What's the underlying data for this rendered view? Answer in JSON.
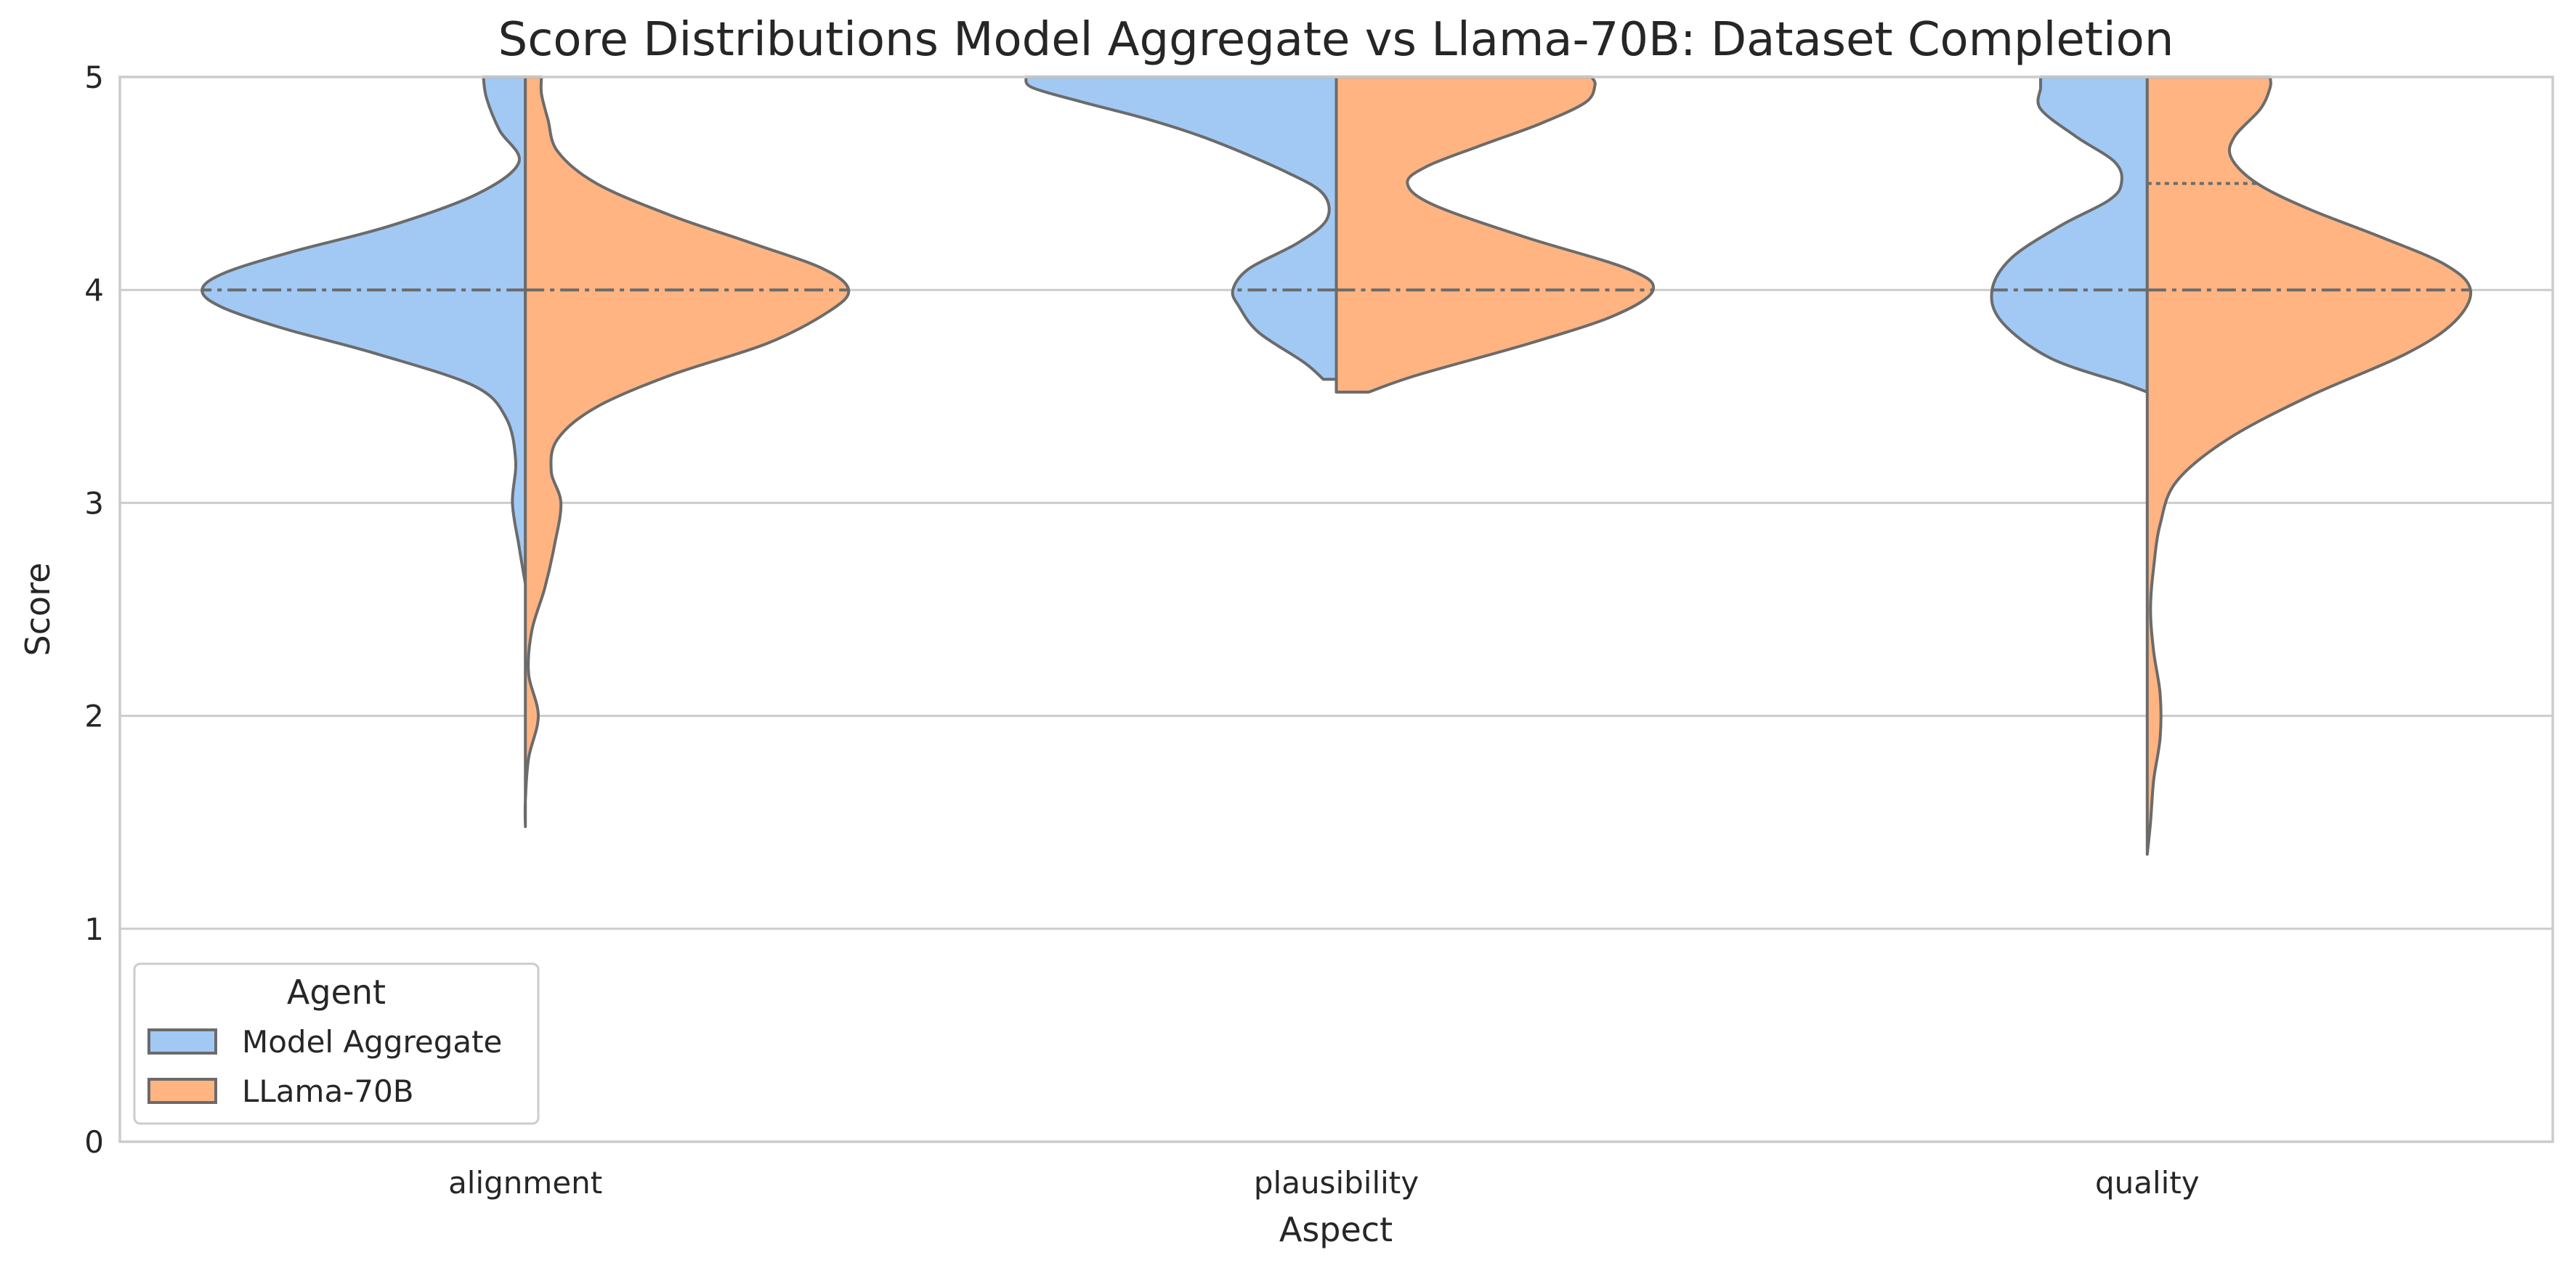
{
  "chart_data": {
    "type": "violin",
    "title": "Score Distributions Model Aggregate vs Llama-70B: Dataset Completion",
    "xlabel": "Aspect",
    "ylabel": "Score",
    "ylim": [
      0,
      5
    ],
    "yticks": [
      "0",
      "1",
      "2",
      "3",
      "4",
      "5"
    ],
    "categories": [
      "alignment",
      "plausibility",
      "quality"
    ],
    "grid": "horizontal",
    "legend": {
      "title": "Agent",
      "placement": "lower-left",
      "entries": [
        "Model Aggregate",
        "LLama-70B"
      ]
    },
    "colors": {
      "Model Aggregate": "#a1c9f4",
      "LLama-70B": "#ffb482",
      "outline": "#6b6b6b",
      "grid": "#cccccc",
      "frame": "#cccccc"
    },
    "series": [
      {
        "name": "Model Aggregate",
        "side": "left",
        "violins": [
          {
            "category": "alignment",
            "min": 2.62,
            "max": 5.0,
            "median": 4.0,
            "quartile_lines": [
              4.0
            ],
            "profile": [
              [
                2.62,
                0.0
              ],
              [
                2.8,
                0.02
              ],
              [
                3.0,
                0.04
              ],
              [
                3.2,
                0.03
              ],
              [
                3.4,
                0.06
              ],
              [
                3.55,
                0.16
              ],
              [
                3.7,
                0.46
              ],
              [
                3.82,
                0.75
              ],
              [
                3.92,
                0.94
              ],
              [
                4.0,
                1.0
              ],
              [
                4.08,
                0.93
              ],
              [
                4.18,
                0.72
              ],
              [
                4.3,
                0.42
              ],
              [
                4.45,
                0.15
              ],
              [
                4.6,
                0.02
              ],
              [
                4.75,
                0.08
              ],
              [
                4.9,
                0.12
              ],
              [
                5.0,
                0.13
              ]
            ]
          },
          {
            "category": "plausibility",
            "min": 3.58,
            "max": 5.0,
            "median": 4.0,
            "quartile_lines": [
              4.0
            ],
            "profile": [
              [
                3.58,
                0.04
              ],
              [
                3.66,
                0.1
              ],
              [
                3.8,
                0.24
              ],
              [
                3.92,
                0.3
              ],
              [
                4.0,
                0.32
              ],
              [
                4.1,
                0.27
              ],
              [
                4.22,
                0.12
              ],
              [
                4.33,
                0.03
              ],
              [
                4.45,
                0.04
              ],
              [
                4.55,
                0.15
              ],
              [
                4.7,
                0.38
              ],
              [
                4.8,
                0.58
              ],
              [
                4.88,
                0.78
              ],
              [
                4.95,
                0.94
              ],
              [
                5.0,
                0.96
              ]
            ]
          },
          {
            "category": "quality",
            "min": 3.52,
            "max": 5.0,
            "median": 4.0,
            "quartile_lines": [
              4.0
            ],
            "profile": [
              [
                3.52,
                0.0
              ],
              [
                3.56,
                0.07
              ],
              [
                3.68,
                0.3
              ],
              [
                3.85,
                0.45
              ],
              [
                4.0,
                0.48
              ],
              [
                4.15,
                0.42
              ],
              [
                4.3,
                0.27
              ],
              [
                4.42,
                0.12
              ],
              [
                4.5,
                0.08
              ],
              [
                4.6,
                0.1
              ],
              [
                4.72,
                0.22
              ],
              [
                4.85,
                0.33
              ],
              [
                4.95,
                0.33
              ],
              [
                5.0,
                0.33
              ]
            ]
          }
        ]
      },
      {
        "name": "LLama-70B",
        "side": "right",
        "violins": [
          {
            "category": "alignment",
            "min": 1.48,
            "max": 5.0,
            "median": 4.0,
            "quartile_lines": [
              4.0
            ],
            "profile": [
              [
                1.48,
                0.0
              ],
              [
                1.6,
                0.0
              ],
              [
                1.8,
                0.01
              ],
              [
                2.0,
                0.04
              ],
              [
                2.2,
                0.01
              ],
              [
                2.4,
                0.02
              ],
              [
                2.6,
                0.06
              ],
              [
                2.8,
                0.09
              ],
              [
                3.0,
                0.11
              ],
              [
                3.15,
                0.08
              ],
              [
                3.3,
                0.1
              ],
              [
                3.45,
                0.22
              ],
              [
                3.6,
                0.45
              ],
              [
                3.75,
                0.75
              ],
              [
                3.9,
                0.94
              ],
              [
                4.0,
                1.0
              ],
              [
                4.1,
                0.92
              ],
              [
                4.22,
                0.7
              ],
              [
                4.35,
                0.45
              ],
              [
                4.5,
                0.22
              ],
              [
                4.65,
                0.1
              ],
              [
                4.8,
                0.07
              ],
              [
                4.92,
                0.05
              ],
              [
                5.0,
                0.05
              ]
            ]
          },
          {
            "category": "plausibility",
            "min": 3.52,
            "max": 5.0,
            "median": 4.0,
            "quartile_lines": [
              4.0
            ],
            "profile": [
              [
                3.52,
                0.1
              ],
              [
                3.6,
                0.25
              ],
              [
                3.75,
                0.6
              ],
              [
                3.88,
                0.86
              ],
              [
                4.0,
                0.98
              ],
              [
                4.1,
                0.9
              ],
              [
                4.25,
                0.58
              ],
              [
                4.4,
                0.3
              ],
              [
                4.5,
                0.22
              ],
              [
                4.58,
                0.28
              ],
              [
                4.68,
                0.45
              ],
              [
                4.78,
                0.63
              ],
              [
                4.88,
                0.77
              ],
              [
                4.96,
                0.8
              ],
              [
                5.0,
                0.79
              ]
            ]
          },
          {
            "category": "quality",
            "min": 1.35,
            "max": 5.0,
            "median": 4.0,
            "quartile_lines": [
              4.0,
              4.5
            ],
            "profile": [
              [
                1.35,
                0.0
              ],
              [
                1.5,
                0.01
              ],
              [
                1.7,
                0.02
              ],
              [
                1.9,
                0.04
              ],
              [
                2.1,
                0.04
              ],
              [
                2.3,
                0.02
              ],
              [
                2.5,
                0.01
              ],
              [
                2.7,
                0.02
              ],
              [
                2.9,
                0.04
              ],
              [
                3.1,
                0.09
              ],
              [
                3.3,
                0.25
              ],
              [
                3.5,
                0.5
              ],
              [
                3.7,
                0.8
              ],
              [
                3.85,
                0.95
              ],
              [
                4.0,
                1.0
              ],
              [
                4.12,
                0.92
              ],
              [
                4.25,
                0.72
              ],
              [
                4.38,
                0.5
              ],
              [
                4.5,
                0.34
              ],
              [
                4.62,
                0.26
              ],
              [
                4.72,
                0.27
              ],
              [
                4.85,
                0.35
              ],
              [
                4.95,
                0.38
              ],
              [
                5.0,
                0.38
              ]
            ]
          }
        ]
      }
    ]
  }
}
